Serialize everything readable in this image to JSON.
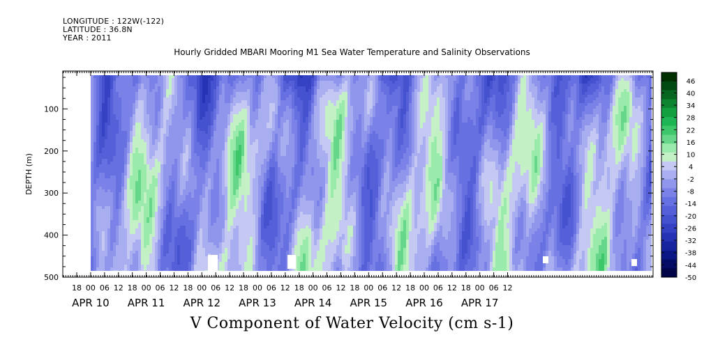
{
  "header": {
    "longitude": "LONGITUDE : 122W(-122)",
    "latitude": "LATITUDE : 36.8N",
    "year": "YEAR : 2011"
  },
  "chart_data": {
    "type": "heatmap",
    "title": "Hourly Gridded MBARI Mooring M1 Sea Water Temperature and Salinity Observations",
    "xlabel": "V Component of Water Velocity (cm s-1)",
    "ylabel": "DEPTH (m)",
    "y_reversed": true,
    "ylim": [
      500,
      10
    ],
    "y_ticks": [
      100,
      200,
      300,
      400,
      500
    ],
    "x_hour_ticks": [
      "18",
      "00",
      "06",
      "12",
      "18",
      "00",
      "06",
      "12",
      "18",
      "00",
      "06",
      "12",
      "18",
      "00",
      "06",
      "12",
      "18",
      "00",
      "06",
      "12",
      "18",
      "00",
      "06",
      "12",
      "18",
      "00",
      "06",
      "12",
      "18",
      "00",
      "06",
      "12"
    ],
    "x_day_labels": [
      "APR 10",
      "APR 11",
      "APR 12",
      "APR 13",
      "APR 14",
      "APR 15",
      "APR 16",
      "APR 17"
    ],
    "data_depth_range_m": [
      20,
      485
    ],
    "colorbar": {
      "levels": [
        46,
        40,
        34,
        28,
        22,
        16,
        10,
        4,
        -2,
        -8,
        -14,
        -20,
        -26,
        -32,
        -38,
        -44,
        -50
      ],
      "range": [
        -50,
        50
      ],
      "colors": [
        "#003000",
        "#004a12",
        "#07661f",
        "#0d8430",
        "#139e40",
        "#20b554",
        "#3ec66b",
        "#66d68a",
        "#9aeaac",
        "#c4f0c6",
        "#c5c8f2",
        "#a8aef0",
        "#8f96ec",
        "#7a82e8",
        "#6670e0",
        "#5560d8",
        "#4552d0",
        "#3542c4",
        "#2532b4",
        "#16249e",
        "#0a1684",
        "#050c66",
        "#020548"
      ]
    }
  }
}
